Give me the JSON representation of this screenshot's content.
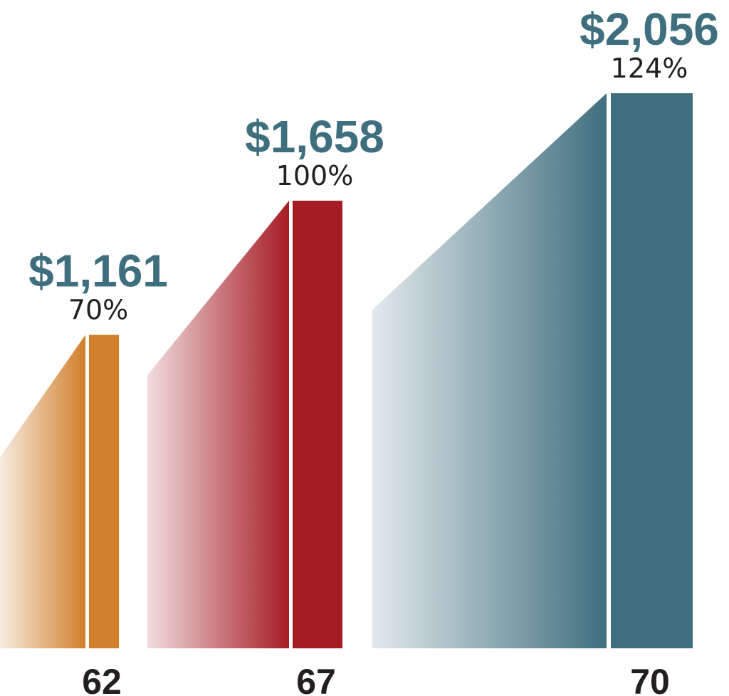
{
  "chart_data": {
    "type": "bar",
    "categories": [
      "62",
      "67",
      "70"
    ],
    "values": [
      1161,
      1658,
      2056
    ],
    "value_labels": [
      "$1,161",
      "$1,658",
      "$2,056"
    ],
    "percent_values": [
      70,
      100,
      124
    ],
    "percent_labels": [
      "70%",
      "100%",
      "124%"
    ],
    "title": "",
    "xlabel": "",
    "ylabel": "",
    "grid": false,
    "colors": [
      "#d17f2c",
      "#a51c24",
      "#3f6f7f"
    ],
    "value_label_color": "#3f6f7f",
    "percent_label_color": "#231f20",
    "category_label_color": "#231f20"
  }
}
